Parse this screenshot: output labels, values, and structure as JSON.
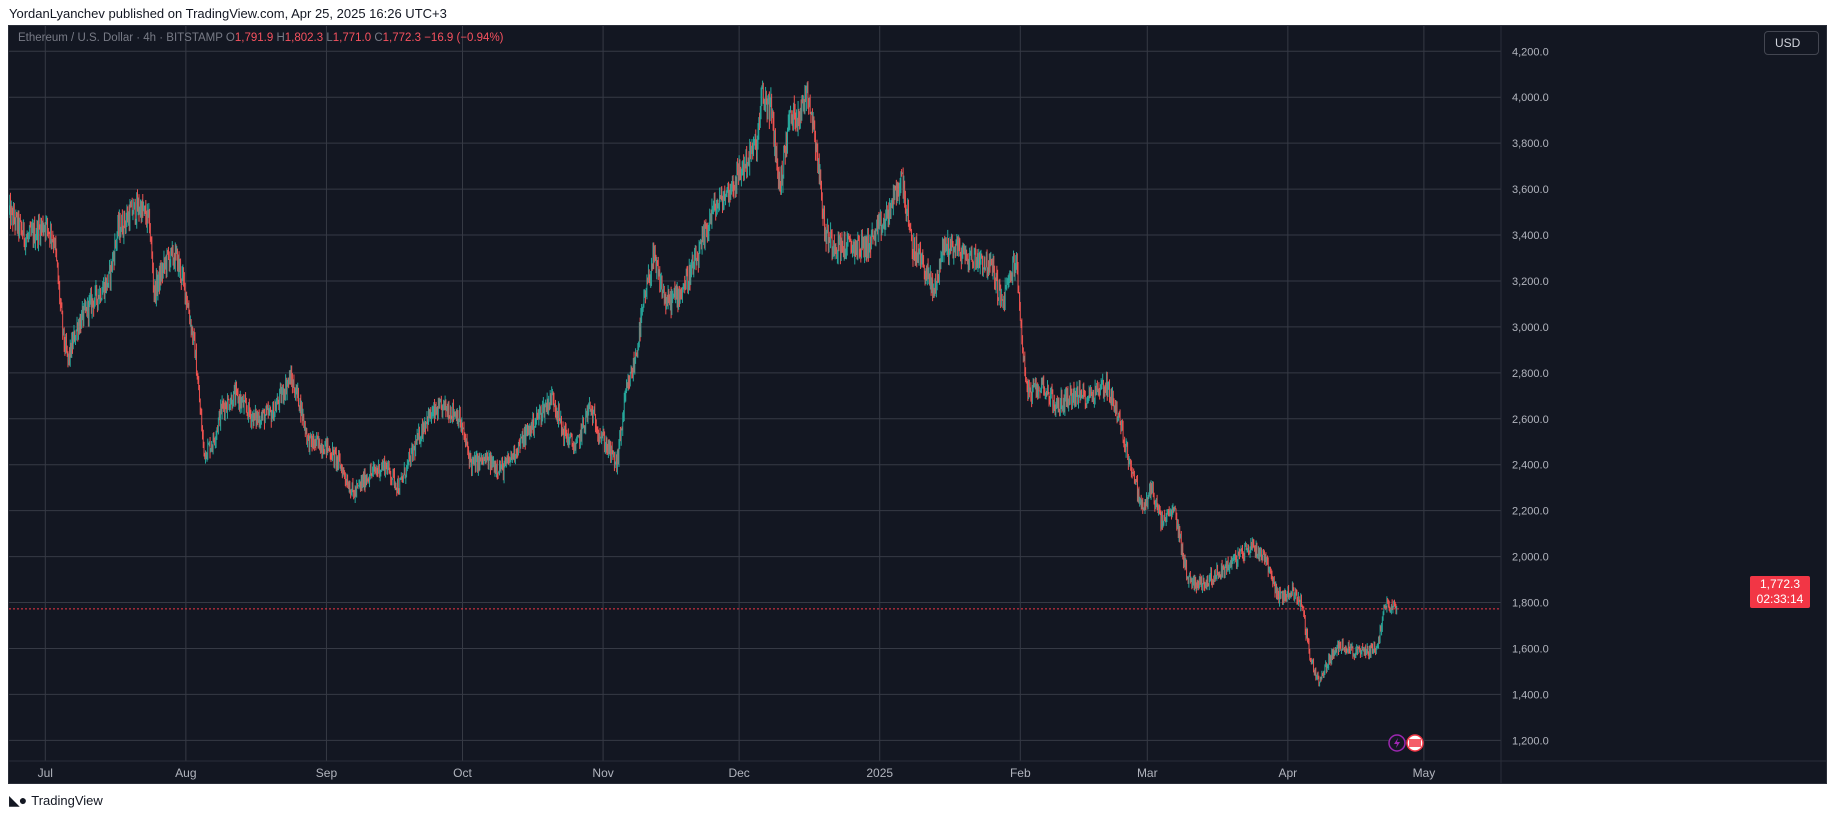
{
  "header": {
    "published_text": "YordanLyanchev published on TradingView.com, Apr 25, 2025 16:26 UTC+3"
  },
  "legend": {
    "symbol": "Ethereum / U.S. Dollar · 4h · BITSTAMP",
    "o_label": "O",
    "o_value": "1,791.9",
    "h_label": "H",
    "h_value": "1,802.3",
    "l_label": "L",
    "l_value": "1,771.0",
    "c_label": "C",
    "c_value": "1,772.3",
    "change": "−16.9 (−0.94%)"
  },
  "currency_button": "USD",
  "last_price": {
    "value": "1,772.3",
    "countdown": "02:33:14"
  },
  "footer": {
    "brand": "TradingView"
  },
  "colors": {
    "background": "#131722",
    "grid": "#363a45",
    "up": "#26a69a",
    "down": "#ef5350",
    "price_line": "#f23645",
    "axis_text": "#b2b5be"
  },
  "chart_data": {
    "type": "candlestick",
    "interval": "4h",
    "y_axis": {
      "ticks": [
        1200,
        1400,
        1600,
        1800,
        2000,
        2200,
        2400,
        2600,
        2800,
        3000,
        3200,
        3400,
        3600,
        3800,
        4000,
        4200
      ],
      "tick_labels": [
        "1,200.0",
        "1,400.0",
        "1,600.0",
        "1,800.0",
        "2,000.0",
        "2,200.0",
        "2,400.0",
        "2,600.0",
        "2,800.0",
        "3,000.0",
        "3,200.0",
        "3,400.0",
        "3,600.0",
        "3,800.0",
        "4,000.0",
        "4,200.0"
      ],
      "ylim": [
        1110,
        4310
      ]
    },
    "x_axis": {
      "ticks": [
        {
          "date": "2024-07-01",
          "label": "Jul"
        },
        {
          "date": "2024-08-01",
          "label": "Aug"
        },
        {
          "date": "2024-09-01",
          "label": "Sep"
        },
        {
          "date": "2024-10-01",
          "label": "Oct"
        },
        {
          "date": "2024-11-01",
          "label": "Nov"
        },
        {
          "date": "2024-12-01",
          "label": "Dec"
        },
        {
          "date": "2025-01-01",
          "label": "2025"
        },
        {
          "date": "2025-02-01",
          "label": "Feb"
        },
        {
          "date": "2025-03-01",
          "label": "Mar"
        },
        {
          "date": "2025-04-01",
          "label": "Apr"
        },
        {
          "date": "2025-05-01",
          "label": "May"
        }
      ],
      "xlim": [
        "2024-06-23",
        "2025-05-18"
      ]
    },
    "approx_close_path": [
      [
        "2024-06-23",
        3500
      ],
      [
        "2024-06-27",
        3380
      ],
      [
        "2024-07-01",
        3450
      ],
      [
        "2024-07-03",
        3380
      ],
      [
        "2024-07-05",
        2950
      ],
      [
        "2024-07-06",
        2850
      ],
      [
        "2024-07-08",
        3000
      ],
      [
        "2024-07-11",
        3100
      ],
      [
        "2024-07-15",
        3200
      ],
      [
        "2024-07-17",
        3420
      ],
      [
        "2024-07-20",
        3500
      ],
      [
        "2024-07-22",
        3520
      ],
      [
        "2024-07-24",
        3450
      ],
      [
        "2024-07-25",
        3150
      ],
      [
        "2024-07-28",
        3300
      ],
      [
        "2024-07-30",
        3300
      ],
      [
        "2024-08-01",
        3150
      ],
      [
        "2024-08-03",
        2900
      ],
      [
        "2024-08-05",
        2450
      ],
      [
        "2024-08-07",
        2500
      ],
      [
        "2024-08-09",
        2650
      ],
      [
        "2024-08-12",
        2700
      ],
      [
        "2024-08-16",
        2600
      ],
      [
        "2024-08-20",
        2620
      ],
      [
        "2024-08-24",
        2780
      ],
      [
        "2024-08-26",
        2680
      ],
      [
        "2024-08-28",
        2500
      ],
      [
        "2024-09-01",
        2480
      ],
      [
        "2024-09-04",
        2400
      ],
      [
        "2024-09-07",
        2270
      ],
      [
        "2024-09-10",
        2350
      ],
      [
        "2024-09-14",
        2400
      ],
      [
        "2024-09-17",
        2300
      ],
      [
        "2024-09-20",
        2450
      ],
      [
        "2024-09-23",
        2600
      ],
      [
        "2024-09-27",
        2650
      ],
      [
        "2024-09-30",
        2620
      ],
      [
        "2024-10-03",
        2400
      ],
      [
        "2024-10-06",
        2420
      ],
      [
        "2024-10-10",
        2380
      ],
      [
        "2024-10-14",
        2500
      ],
      [
        "2024-10-18",
        2620
      ],
      [
        "2024-10-21",
        2700
      ],
      [
        "2024-10-23",
        2550
      ],
      [
        "2024-10-26",
        2470
      ],
      [
        "2024-10-29",
        2650
      ],
      [
        "2024-10-31",
        2550
      ],
      [
        "2024-11-04",
        2400
      ],
      [
        "2024-11-06",
        2700
      ],
      [
        "2024-11-08",
        2850
      ],
      [
        "2024-11-10",
        3100
      ],
      [
        "2024-11-12",
        3300
      ],
      [
        "2024-11-15",
        3100
      ],
      [
        "2024-11-18",
        3150
      ],
      [
        "2024-11-22",
        3300
      ],
      [
        "2024-11-25",
        3500
      ],
      [
        "2024-11-29",
        3600
      ],
      [
        "2024-12-02",
        3700
      ],
      [
        "2024-12-05",
        3800
      ],
      [
        "2024-12-06",
        4000
      ],
      [
        "2024-12-08",
        3950
      ],
      [
        "2024-12-10",
        3600
      ],
      [
        "2024-12-12",
        3900
      ],
      [
        "2024-12-15",
        3950
      ],
      [
        "2024-12-16",
        4050
      ],
      [
        "2024-12-18",
        3800
      ],
      [
        "2024-12-20",
        3400
      ],
      [
        "2024-12-23",
        3350
      ],
      [
        "2024-12-26",
        3350
      ],
      [
        "2024-12-29",
        3350
      ],
      [
        "2025-01-02",
        3450
      ],
      [
        "2025-01-06",
        3650
      ],
      [
        "2025-01-08",
        3350
      ],
      [
        "2025-01-10",
        3300
      ],
      [
        "2025-01-13",
        3150
      ],
      [
        "2025-01-15",
        3350
      ],
      [
        "2025-01-18",
        3350
      ],
      [
        "2025-01-20",
        3300
      ],
      [
        "2025-01-23",
        3300
      ],
      [
        "2025-01-26",
        3250
      ],
      [
        "2025-01-28",
        3100
      ],
      [
        "2025-01-31",
        3300
      ],
      [
        "2025-02-02",
        2800
      ],
      [
        "2025-02-03",
        2700
      ],
      [
        "2025-02-06",
        2750
      ],
      [
        "2025-02-09",
        2650
      ],
      [
        "2025-02-12",
        2700
      ],
      [
        "2025-02-16",
        2700
      ],
      [
        "2025-02-20",
        2750
      ],
      [
        "2025-02-22",
        2650
      ],
      [
        "2025-02-24",
        2500
      ],
      [
        "2025-02-26",
        2350
      ],
      [
        "2025-02-28",
        2200
      ],
      [
        "2025-03-02",
        2300
      ],
      [
        "2025-03-04",
        2150
      ],
      [
        "2025-03-07",
        2200
      ],
      [
        "2025-03-10",
        1900
      ],
      [
        "2025-03-13",
        1880
      ],
      [
        "2025-03-16",
        1920
      ],
      [
        "2025-03-20",
        1980
      ],
      [
        "2025-03-24",
        2050
      ],
      [
        "2025-03-27",
        2000
      ],
      [
        "2025-03-30",
        1820
      ],
      [
        "2025-04-02",
        1850
      ],
      [
        "2025-04-04",
        1800
      ],
      [
        "2025-04-06",
        1550
      ],
      [
        "2025-04-08",
        1450
      ],
      [
        "2025-04-10",
        1550
      ],
      [
        "2025-04-13",
        1620
      ],
      [
        "2025-04-16",
        1580
      ],
      [
        "2025-04-19",
        1590
      ],
      [
        "2025-04-21",
        1620
      ],
      [
        "2025-04-22",
        1760
      ],
      [
        "2025-04-23",
        1800
      ],
      [
        "2025-04-25",
        1772
      ]
    ],
    "last_price": 1772.3
  }
}
